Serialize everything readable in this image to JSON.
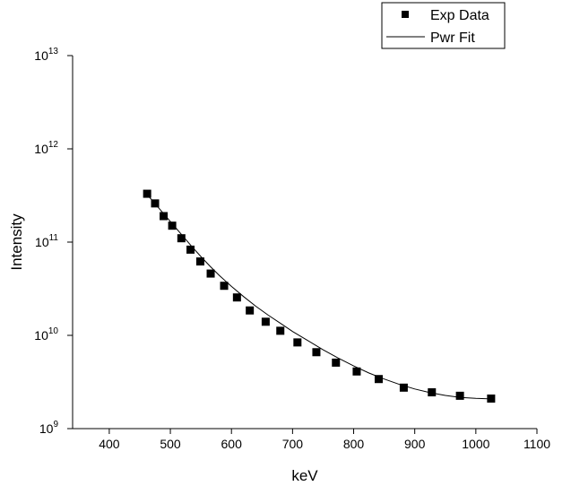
{
  "chart_data": {
    "type": "scatter",
    "xlabel": "keV",
    "ylabel": "Intensity",
    "xlim": [
      340,
      1100
    ],
    "ylim": [
      1000000000,
      10000000000000
    ],
    "y_scale": "log",
    "grid": false,
    "legend_position": "top-right",
    "x_ticks": [
      400,
      500,
      600,
      700,
      800,
      900,
      1000,
      1100
    ],
    "y_ticks": [
      {
        "value": 1000000000,
        "base": "10",
        "exp": "9"
      },
      {
        "value": 10000000000,
        "base": "10",
        "exp": "10"
      },
      {
        "value": 100000000000,
        "base": "10",
        "exp": "11"
      },
      {
        "value": 1000000000000,
        "base": "10",
        "exp": "12"
      },
      {
        "value": 10000000000000,
        "base": "10",
        "exp": "13"
      }
    ],
    "series": [
      {
        "name": "Exp Data",
        "style": "markers",
        "marker": "square",
        "color": "#000000",
        "x": [
          462,
          475,
          489,
          503,
          518,
          533,
          549,
          566,
          588,
          609,
          630,
          656,
          680,
          708,
          739,
          771,
          805,
          841,
          882,
          928,
          974,
          1025
        ],
        "y": [
          330000000000,
          260000000000,
          190000000000,
          150000000000,
          110000000000,
          83000000000,
          62000000000,
          46000000000,
          34000000000,
          25500000000,
          18500000000,
          14000000000,
          11200000000,
          8400000000,
          6600000000,
          5100000000,
          4100000000,
          3400000000,
          2750000000,
          2450000000,
          2250000000,
          2100000000
        ]
      },
      {
        "name": "Pwr Fit",
        "style": "line",
        "color": "#000000",
        "x": [
          460,
          475,
          490,
          505,
          520,
          535,
          550,
          565,
          580,
          600,
          620,
          640,
          660,
          680,
          700,
          725,
          750,
          775,
          800,
          825,
          850,
          875,
          900,
          925,
          950,
          975,
          1000,
          1025
        ],
        "y": [
          335000000000,
          258000000000,
          198000000000,
          152000000000,
          117000000000,
          90000000000,
          70000000000,
          55000000000,
          44000000000,
          33500000000,
          26000000000,
          20500000000,
          16500000000,
          13500000000,
          11000000000,
          8800000000,
          7000000000,
          5700000000,
          4700000000,
          3950000000,
          3400000000,
          2980000000,
          2660000000,
          2430000000,
          2270000000,
          2160000000,
          2110000000,
          2080000000
        ]
      }
    ]
  }
}
